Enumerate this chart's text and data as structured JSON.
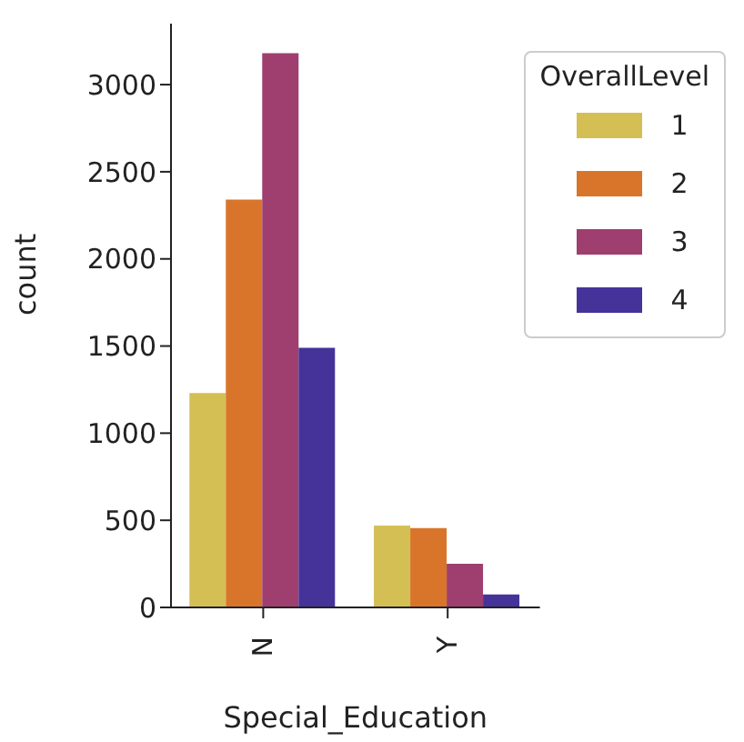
{
  "chart_data": {
    "type": "bar",
    "xlabel": "Special_Education",
    "ylabel": "count",
    "legend_title": "OverallLevel",
    "categories": [
      "N",
      "Y"
    ],
    "series": [
      {
        "name": "1",
        "color": "#d4bf55",
        "values": [
          1230,
          470
        ]
      },
      {
        "name": "2",
        "color": "#d9752a",
        "values": [
          2340,
          455
        ]
      },
      {
        "name": "3",
        "color": "#9e3f6f",
        "values": [
          3180,
          250
        ]
      },
      {
        "name": "4",
        "color": "#45339a",
        "values": [
          1490,
          75
        ]
      }
    ],
    "ylim": [
      0,
      3350
    ],
    "yticks": [
      0,
      500,
      1000,
      1500,
      2000,
      2500,
      3000
    ],
    "grid": false,
    "legend": "top right"
  }
}
